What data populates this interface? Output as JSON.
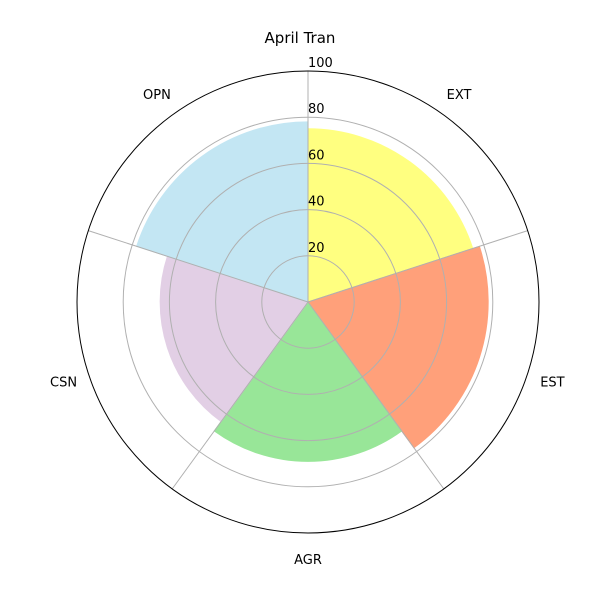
{
  "chart_data": {
    "type": "polar-bar",
    "title": "April Tran",
    "categories": [
      "EXT",
      "EST",
      "AGR",
      "CSN",
      "OPN"
    ],
    "values": [
      75,
      78,
      69,
      64,
      78
    ],
    "colors": [
      "#ffff80",
      "#ffa07a",
      "#98e698",
      "#e2cfe5",
      "#c3e6f3"
    ],
    "radial_ticks": [
      20,
      40,
      60,
      80,
      100
    ],
    "rlim": [
      0,
      100
    ],
    "grid": true,
    "legend": "none"
  }
}
